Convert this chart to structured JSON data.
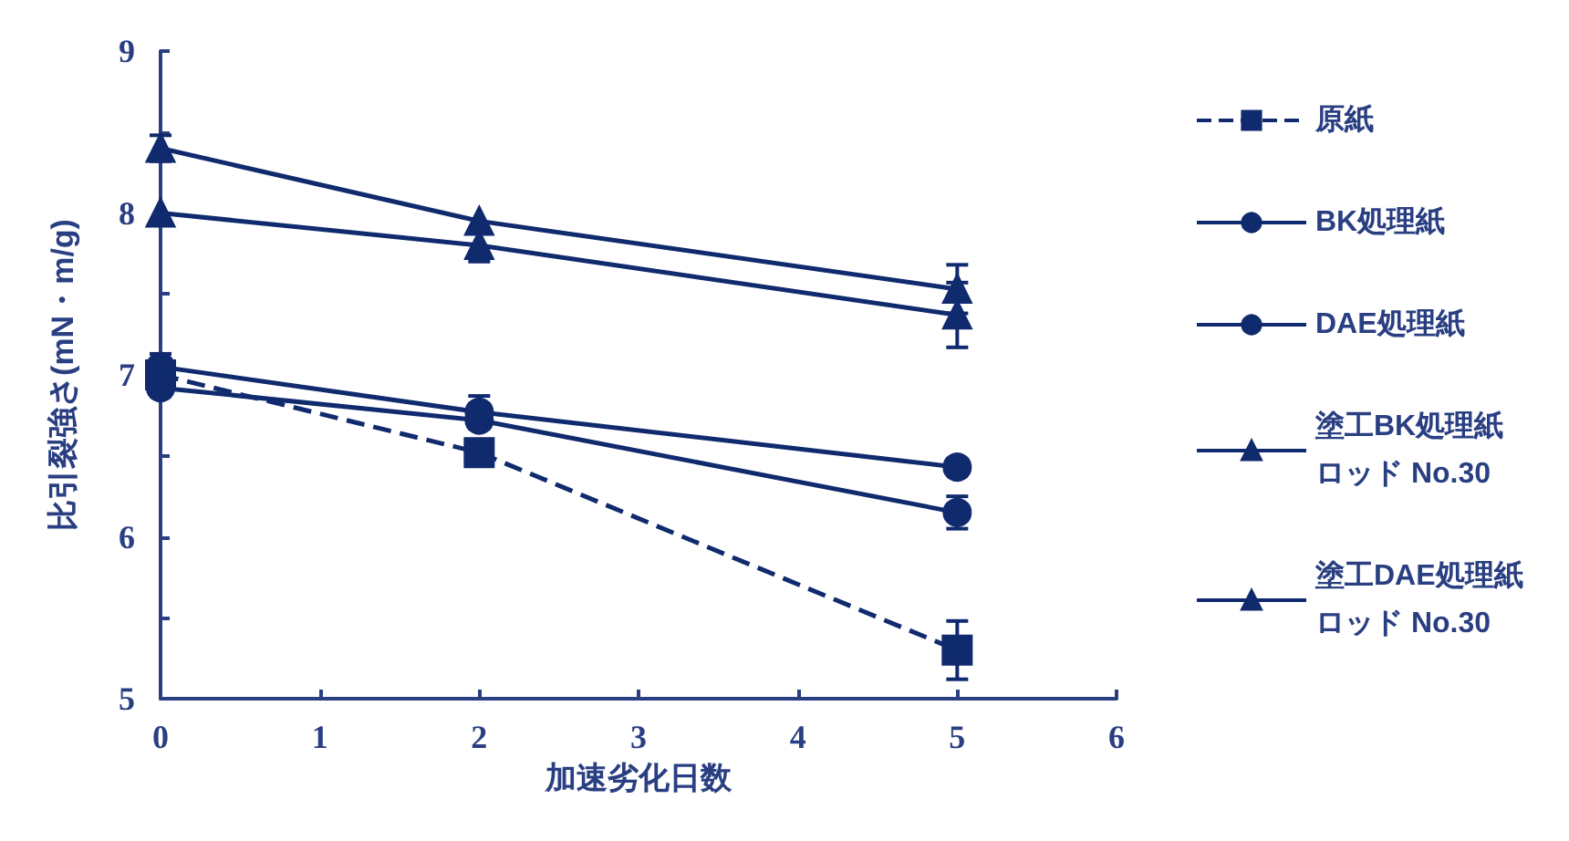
{
  "chart_data": {
    "type": "line",
    "xlabel": "加速劣化日数",
    "ylabel": "比引裂強さ(mN・m/g)",
    "x": [
      0,
      2,
      5
    ],
    "xlim": [
      0,
      6
    ],
    "xticks": [
      0,
      1,
      2,
      3,
      4,
      5,
      6
    ],
    "ylim": [
      5,
      9
    ],
    "yticks": [
      5,
      {
        "value": 5.5,
        "label": null
      },
      6,
      {
        "value": 6.5,
        "label": null
      },
      7,
      {
        "value": 7.5,
        "label": null
      },
      8,
      {
        "value": 8.5,
        "label": null
      },
      9
    ],
    "grid": false,
    "legend": "right",
    "series": [
      {
        "name": "原紙",
        "color": "#102a6e",
        "marker": "square",
        "line_style": "dashed",
        "values": [
          7.0,
          6.52,
          5.3
        ],
        "errors": [
          null,
          null,
          0.18
        ]
      },
      {
        "name": "BK処理紙",
        "color": "#102a6e",
        "marker": "circle",
        "line_style": "solid",
        "values": [
          6.92,
          6.72,
          6.15
        ],
        "errors": [
          null,
          0.05,
          0.1
        ]
      },
      {
        "name": "DAE処理紙",
        "color": "#102a6e",
        "marker": "circle",
        "line_style": "solid",
        "values": [
          7.05,
          6.77,
          6.43
        ],
        "errors": [
          0.08,
          0.1,
          null
        ]
      },
      {
        "name": "塗工BK処理紙ロッド No.30",
        "color": "#102a6e",
        "marker": "triangle",
        "line_style": "solid",
        "values": [
          8.0,
          7.8,
          7.37
        ],
        "errors": [
          null,
          0.1,
          0.2
        ]
      },
      {
        "name": "塗工DAE処理紙ロッド No.30",
        "color": "#102a6e",
        "marker": "triangle",
        "line_style": "solid",
        "values": [
          8.4,
          7.95,
          7.53
        ],
        "errors": [
          0.08,
          null,
          0.15
        ]
      }
    ]
  }
}
